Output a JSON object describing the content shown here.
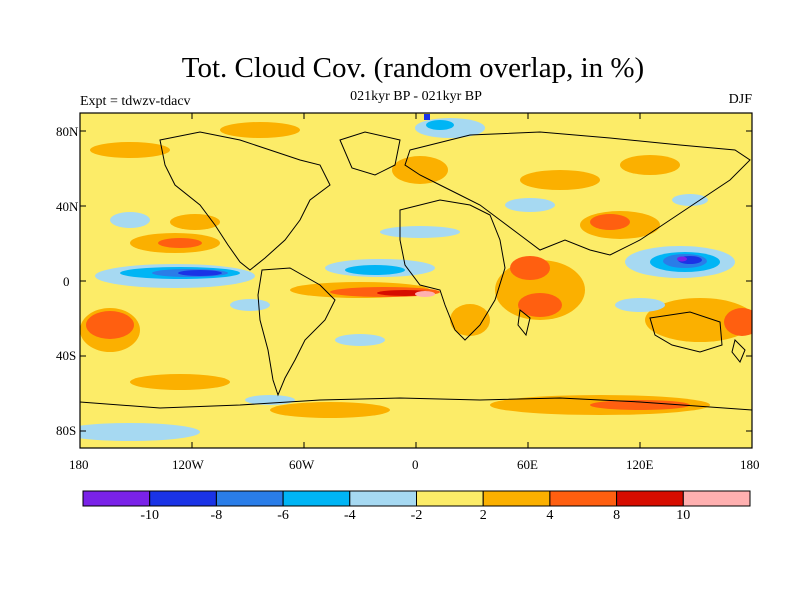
{
  "title": "Tot. Cloud Cov. (random overlap, in %)",
  "subtitle": "021kyr BP - 021kyr BP",
  "experiment": "Expt = tdwzv-tdacv",
  "season": "DJF",
  "lat_ticks": [
    "80N",
    "40N",
    "0",
    "40S",
    "80S"
  ],
  "lon_ticks": [
    "180",
    "120W",
    "60W",
    "0",
    "60E",
    "120E",
    "180"
  ],
  "colorbar": {
    "colors": [
      "#7a22e8",
      "#1a33e6",
      "#2a7de8",
      "#00b5f5",
      "#a6d9f2",
      "#fcec68",
      "#fbb000",
      "#ff5f10",
      "#d60c00",
      "#ffb0b0"
    ],
    "labels": [
      "-10",
      "-8",
      "-6",
      "-4",
      "-2",
      "2",
      "4",
      "8",
      "10"
    ]
  },
  "background_color": "#fcec68"
}
